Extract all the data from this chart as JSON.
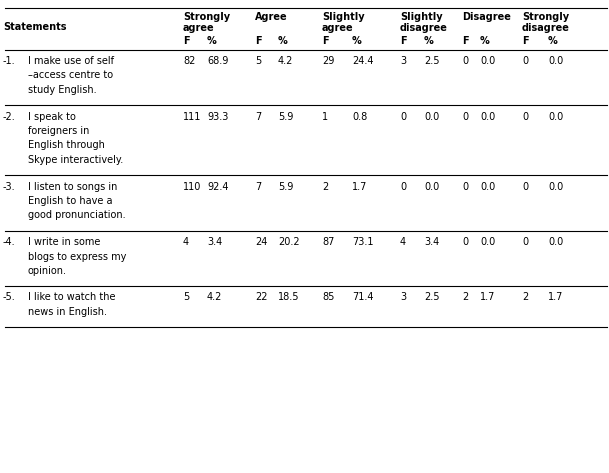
{
  "rows": [
    {
      "num": "-1.",
      "statement_lines": [
        "I make use of self",
        "–access centre to",
        "study English."
      ],
      "SA_F": "82",
      "SA_pct": "68.9",
      "A_F": "5",
      "A_pct": "4.2",
      "SLA_F": "29",
      "SLA_pct": "24.4",
      "SLD_F": "3",
      "SLD_pct": "2.5",
      "D_F": "0",
      "D_pct": "0.0",
      "SD_F": "0",
      "SD_pct": "0.0",
      "n_lines": 3
    },
    {
      "num": "-2.",
      "statement_lines": [
        "I speak to",
        "foreigners in",
        "English through",
        "Skype interactively."
      ],
      "SA_F": "111",
      "SA_pct": "93.3",
      "A_F": "7",
      "A_pct": "5.9",
      "SLA_F": "1",
      "SLA_pct": "0.8",
      "SLD_F": "0",
      "SLD_pct": "0.0",
      "D_F": "0",
      "D_pct": "0.0",
      "SD_F": "0",
      "SD_pct": "0.0",
      "n_lines": 4
    },
    {
      "num": "-3.",
      "statement_lines": [
        "I listen to songs in",
        "English to have a",
        "good pronunciation."
      ],
      "SA_F": "110",
      "SA_pct": "92.4",
      "A_F": "7",
      "A_pct": "5.9",
      "SLA_F": "2",
      "SLA_pct": "1.7",
      "SLD_F": "0",
      "SLD_pct": "0.0",
      "D_F": "0",
      "D_pct": "0.0",
      "SD_F": "0",
      "SD_pct": "0.0",
      "n_lines": 3
    },
    {
      "num": "-4.",
      "statement_lines": [
        "I write in some",
        "blogs to express my",
        "opinion."
      ],
      "SA_F": "4",
      "SA_pct": "3.4",
      "A_F": "24",
      "A_pct": "20.2",
      "SLA_F": "87",
      "SLA_pct": "73.1",
      "SLD_F": "4",
      "SLD_pct": "3.4",
      "D_F": "0",
      "D_pct": "0.0",
      "SD_F": "0",
      "SD_pct": "0.0",
      "n_lines": 3
    },
    {
      "num": "-5.",
      "statement_lines": [
        "I like to watch the",
        "news in English."
      ],
      "SA_F": "5",
      "SA_pct": "4.2",
      "A_F": "22",
      "A_pct": "18.5",
      "SLA_F": "85",
      "SLA_pct": "71.4",
      "SLD_F": "3",
      "SLD_pct": "2.5",
      "D_F": "2",
      "D_pct": "1.7",
      "SD_F": "2",
      "SD_pct": "1.7",
      "n_lines": 2
    }
  ],
  "background_color": "#ffffff",
  "text_color": "#000000",
  "font_size": 7.0,
  "font_family": "DejaVu Sans"
}
